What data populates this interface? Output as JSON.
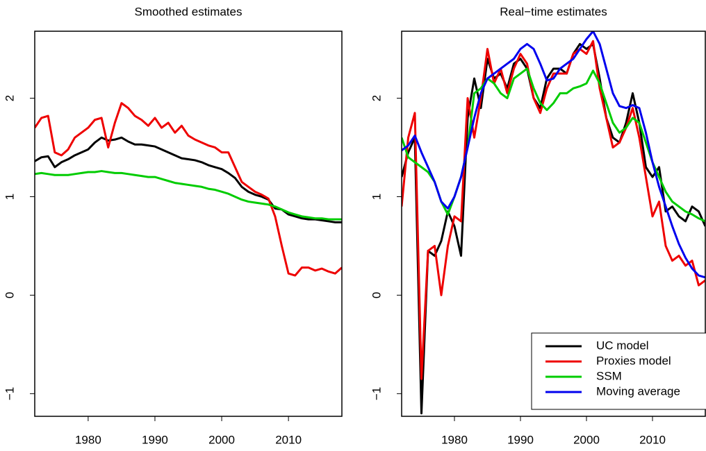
{
  "chart_data": [
    {
      "type": "line",
      "title": "Smoothed estimates",
      "x": [
        1972,
        1973,
        1974,
        1975,
        1976,
        1977,
        1978,
        1979,
        1980,
        1981,
        1982,
        1983,
        1984,
        1985,
        1986,
        1987,
        1988,
        1989,
        1990,
        1991,
        1992,
        1993,
        1994,
        1995,
        1996,
        1997,
        1998,
        1999,
        2000,
        2001,
        2002,
        2003,
        2004,
        2005,
        2006,
        2007,
        2008,
        2009,
        2010,
        2011,
        2012,
        2013,
        2014,
        2015,
        2016,
        2017,
        2018
      ],
      "series": [
        {
          "color": "#000000",
          "values": [
            1.36,
            1.4,
            1.41,
            1.3,
            1.35,
            1.38,
            1.42,
            1.45,
            1.48,
            1.55,
            1.6,
            1.57,
            1.58,
            1.6,
            1.56,
            1.53,
            1.53,
            1.52,
            1.51,
            1.48,
            1.45,
            1.42,
            1.39,
            1.38,
            1.37,
            1.35,
            1.32,
            1.3,
            1.28,
            1.24,
            1.19,
            1.1,
            1.05,
            1.02,
            1.0,
            0.97,
            0.88,
            0.87,
            0.82,
            0.8,
            0.78,
            0.77,
            0.77,
            0.76,
            0.75,
            0.74,
            0.74
          ]
        },
        {
          "color": "#ee0000",
          "values": [
            1.7,
            1.8,
            1.82,
            1.45,
            1.42,
            1.48,
            1.6,
            1.65,
            1.7,
            1.78,
            1.8,
            1.5,
            1.75,
            1.95,
            1.9,
            1.82,
            1.78,
            1.72,
            1.8,
            1.7,
            1.75,
            1.65,
            1.72,
            1.62,
            1.58,
            1.55,
            1.52,
            1.5,
            1.45,
            1.45,
            1.3,
            1.15,
            1.1,
            1.05,
            1.02,
            0.98,
            0.8,
            0.5,
            0.22,
            0.2,
            0.28,
            0.28,
            0.25,
            0.27,
            0.24,
            0.22,
            0.28
          ]
        },
        {
          "color": "#00cc00",
          "values": [
            1.23,
            1.24,
            1.23,
            1.22,
            1.22,
            1.22,
            1.23,
            1.24,
            1.25,
            1.25,
            1.26,
            1.25,
            1.24,
            1.24,
            1.23,
            1.22,
            1.21,
            1.2,
            1.2,
            1.18,
            1.16,
            1.14,
            1.13,
            1.12,
            1.11,
            1.1,
            1.08,
            1.07,
            1.05,
            1.03,
            1.0,
            0.97,
            0.95,
            0.94,
            0.93,
            0.92,
            0.9,
            0.87,
            0.84,
            0.82,
            0.8,
            0.79,
            0.78,
            0.78,
            0.77,
            0.77,
            0.77
          ]
        }
      ],
      "xlim": [
        1972,
        2018
      ],
      "ylim": [
        -1.23,
        2.68
      ],
      "xticks": [
        1980,
        1990,
        2000,
        2010
      ],
      "yticks": [
        {
          "value": -1,
          "label": "−1"
        },
        0,
        1,
        2
      ]
    },
    {
      "type": "line",
      "title": "Real−time estimates",
      "x": [
        1972,
        1973,
        1974,
        1975,
        1976,
        1977,
        1978,
        1979,
        1980,
        1981,
        1982,
        1983,
        1984,
        1985,
        1986,
        1987,
        1988,
        1989,
        1990,
        1991,
        1992,
        1993,
        1994,
        1995,
        1996,
        1997,
        1998,
        1999,
        2000,
        2001,
        2002,
        2003,
        2004,
        2005,
        2006,
        2007,
        2008,
        2009,
        2010,
        2011,
        2012,
        2013,
        2014,
        2015,
        2016,
        2017,
        2018
      ],
      "series": [
        {
          "name": "UC model",
          "color": "#000000",
          "values": [
            1.2,
            1.45,
            1.6,
            -1.2,
            0.45,
            0.4,
            0.55,
            0.85,
            0.7,
            0.4,
            1.8,
            2.2,
            1.9,
            2.4,
            2.2,
            2.25,
            2.1,
            2.35,
            2.4,
            2.3,
            2.0,
            1.9,
            2.2,
            2.3,
            2.3,
            2.25,
            2.45,
            2.55,
            2.5,
            2.55,
            2.2,
            1.8,
            1.6,
            1.55,
            1.75,
            2.05,
            1.75,
            1.3,
            1.2,
            1.3,
            0.85,
            0.9,
            0.8,
            0.75,
            0.9,
            0.85,
            0.7
          ]
        },
        {
          "name": "Proxies model",
          "color": "#ee0000",
          "values": [
            0.9,
            1.6,
            1.85,
            -0.85,
            0.45,
            0.5,
            0.0,
            0.5,
            0.8,
            0.75,
            2.0,
            1.6,
            2.0,
            2.5,
            2.15,
            2.3,
            2.05,
            2.3,
            2.45,
            2.35,
            2.0,
            1.85,
            2.1,
            2.25,
            2.25,
            2.25,
            2.45,
            2.5,
            2.45,
            2.58,
            2.1,
            1.8,
            1.5,
            1.55,
            1.7,
            1.9,
            1.6,
            1.2,
            0.8,
            0.95,
            0.5,
            0.35,
            0.4,
            0.3,
            0.35,
            0.1,
            0.15
          ]
        },
        {
          "name": "SSM",
          "color": "#00cc00",
          "values": [
            1.6,
            1.4,
            1.35,
            1.3,
            1.25,
            1.15,
            0.95,
            0.82,
            1.0,
            1.2,
            1.5,
            2.05,
            2.1,
            2.2,
            2.15,
            2.05,
            2.0,
            2.2,
            2.25,
            2.3,
            2.1,
            1.95,
            1.88,
            1.95,
            2.05,
            2.05,
            2.1,
            2.12,
            2.15,
            2.28,
            2.15,
            1.95,
            1.75,
            1.65,
            1.7,
            1.8,
            1.75,
            1.55,
            1.35,
            1.2,
            1.05,
            0.95,
            0.9,
            0.85,
            0.82,
            0.78,
            0.75
          ]
        },
        {
          "name": "Moving average",
          "color": "#0000ee",
          "values": [
            1.47,
            1.52,
            1.62,
            1.45,
            1.3,
            1.15,
            0.95,
            0.88,
            1.0,
            1.2,
            1.5,
            1.8,
            2.05,
            2.2,
            2.25,
            2.3,
            2.35,
            2.4,
            2.5,
            2.55,
            2.5,
            2.35,
            2.18,
            2.2,
            2.3,
            2.35,
            2.4,
            2.5,
            2.6,
            2.68,
            2.55,
            2.3,
            2.05,
            1.92,
            1.9,
            1.93,
            1.9,
            1.65,
            1.35,
            1.1,
            0.9,
            0.7,
            0.52,
            0.38,
            0.27,
            0.2,
            0.18
          ]
        }
      ],
      "xlim": [
        1972,
        2018
      ],
      "ylim": [
        -1.23,
        2.68
      ],
      "xticks": [
        1980,
        1990,
        2000,
        2010
      ],
      "yticks": [
        {
          "value": -1,
          "label": "−1"
        },
        0,
        1,
        2
      ],
      "legend": "bottomright"
    }
  ]
}
